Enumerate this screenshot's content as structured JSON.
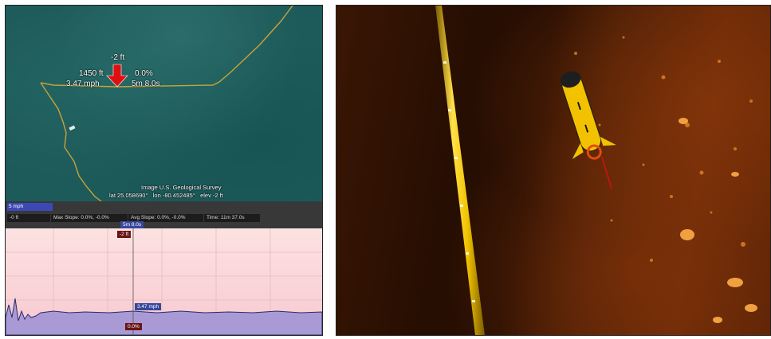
{
  "map": {
    "depth_label": "-2 ft",
    "distance_label": "1450 ft",
    "grade_label": "0.0%",
    "speed_label": "3.47 mph",
    "time_label": "5m 8.0s",
    "credit": "Image U.S. Geological Survey",
    "lat_label": "lat",
    "lat_value": "25.058690°",
    "lon_label": "lon",
    "lon_value": "-80.452485°",
    "elev_label": "elev",
    "elev_value": "-2 ft"
  },
  "info": {
    "speed_chip": "5 mph",
    "cells": [
      "-0 ft",
      "Max Slope: 0.0%, -0.0%",
      "Avg Slope: 0.0%, -0.0%",
      "Time: 11m 37.0s"
    ]
  },
  "profile": {
    "time_tag": "5m 8.0s",
    "depth_tag": "-2 ft",
    "speed_tag": "3.47 mph",
    "grade_tag": "0.0%"
  },
  "colors": {
    "track": "#c9a23a",
    "marker": "#e01010",
    "profile_fill": "#a99ad6",
    "profile_line": "#2a2a6a",
    "cable": "#f2c400"
  },
  "icons": [
    "position-arrow-icon",
    "boat-icon",
    "auv-icon"
  ]
}
